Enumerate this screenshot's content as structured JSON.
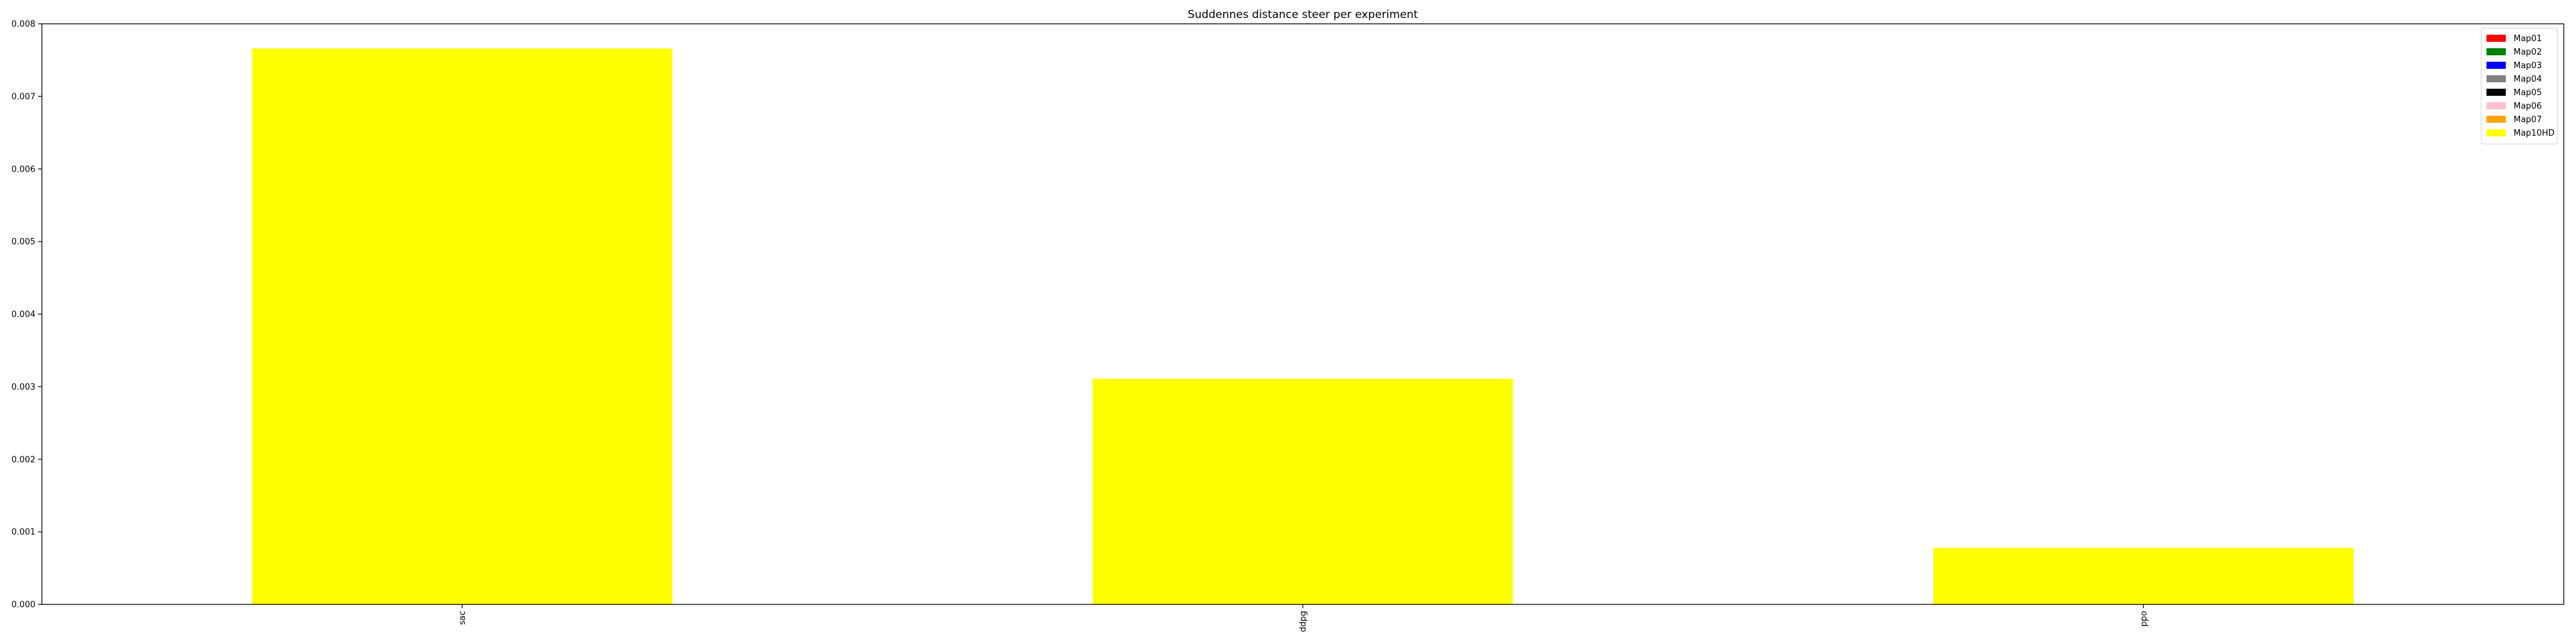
{
  "chart_data": {
    "type": "bar",
    "title": "Suddennes distance steer per experiment",
    "xlabel": "",
    "ylabel": "",
    "categories": [
      "sac",
      "ddpg",
      "ppo"
    ],
    "ylim": [
      0,
      0.008
    ],
    "yticks": [
      0.0,
      0.001,
      0.002,
      0.003,
      0.004,
      0.005,
      0.006,
      0.007,
      0.008
    ],
    "ytick_labels": [
      "0.000",
      "0.001",
      "0.002",
      "0.003",
      "0.004",
      "0.005",
      "0.006",
      "0.007",
      "0.008"
    ],
    "grid": false,
    "legend_position": "top-right",
    "series": [
      {
        "name": "Map01",
        "color": "#ff0000",
        "values": [
          0,
          0,
          0
        ]
      },
      {
        "name": "Map02",
        "color": "#008000",
        "values": [
          0,
          0,
          0
        ]
      },
      {
        "name": "Map03",
        "color": "#0000ff",
        "values": [
          0,
          0,
          0
        ]
      },
      {
        "name": "Map04",
        "color": "#808080",
        "values": [
          0,
          0,
          0
        ]
      },
      {
        "name": "Map05",
        "color": "#000000",
        "values": [
          0,
          0,
          0
        ]
      },
      {
        "name": "Map06",
        "color": "#ffc0cb",
        "values": [
          0,
          0,
          0
        ]
      },
      {
        "name": "Map07",
        "color": "#ffa500",
        "values": [
          0,
          0,
          0
        ]
      },
      {
        "name": "Map10HD",
        "color": "#ffff00",
        "values": [
          0.00766,
          0.00311,
          0.00078
        ]
      }
    ]
  }
}
